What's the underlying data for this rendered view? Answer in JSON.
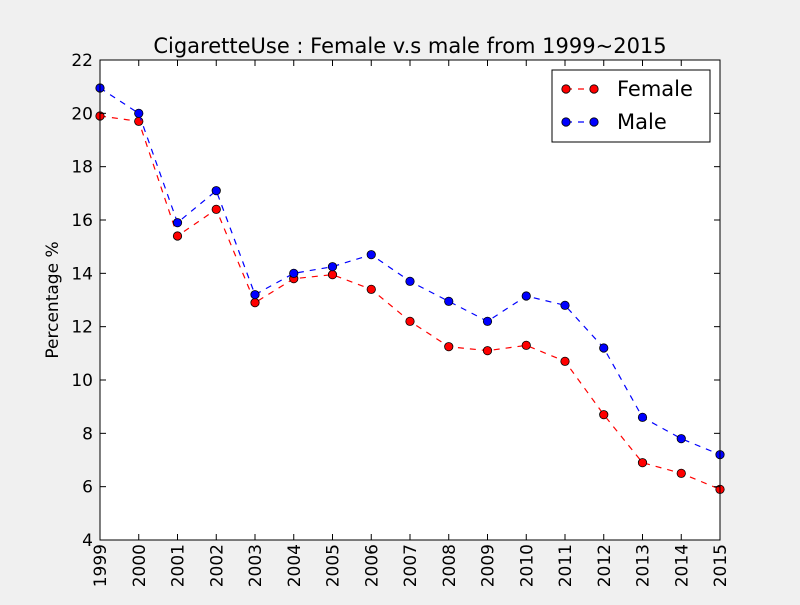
{
  "chart_data": {
    "type": "line",
    "title": "CigaretteUse : Female v.s male from 1999~2015",
    "xlabel": "",
    "ylabel": "Percentage %",
    "x": [
      "1999",
      "2000",
      "2001",
      "2002",
      "2003",
      "2004",
      "2005",
      "2006",
      "2007",
      "2008",
      "2009",
      "2010",
      "2011",
      "2012",
      "2013",
      "2014",
      "2015"
    ],
    "xlim": [
      1999,
      2015
    ],
    "ylim": [
      4,
      22
    ],
    "yticks": [
      "4",
      "6",
      "8",
      "10",
      "12",
      "14",
      "16",
      "18",
      "20",
      "22"
    ],
    "grid": false,
    "legend_position": "top-right",
    "series": [
      {
        "name": "Female",
        "color": "#ff0000",
        "line_style": "dashed",
        "marker": "circle",
        "values": [
          19.9,
          19.7,
          15.4,
          16.4,
          12.9,
          13.8,
          13.95,
          13.4,
          12.2,
          11.25,
          11.1,
          11.3,
          10.7,
          8.7,
          6.9,
          6.5,
          5.9
        ]
      },
      {
        "name": "Male",
        "color": "#0000ff",
        "line_style": "dashed",
        "marker": "circle",
        "values": [
          20.95,
          20.0,
          15.9,
          17.1,
          13.2,
          14.0,
          14.25,
          14.7,
          13.7,
          12.95,
          12.2,
          13.15,
          12.8,
          11.2,
          8.6,
          7.8,
          7.2
        ]
      }
    ]
  }
}
